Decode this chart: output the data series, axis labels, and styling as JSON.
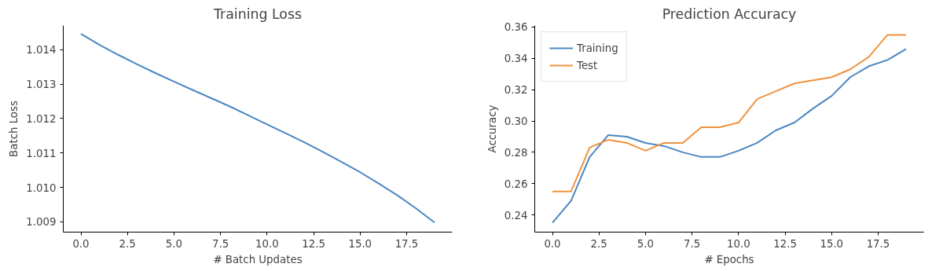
{
  "chart_data": [
    {
      "type": "line",
      "title": "Training Loss",
      "xlabel": "# Batch Updates",
      "ylabel": "Batch Loss",
      "x": [
        0,
        1,
        2,
        3,
        4,
        5,
        6,
        7,
        8,
        9,
        10,
        11,
        12,
        13,
        14,
        15,
        16,
        17,
        18,
        19
      ],
      "series": [
        {
          "color": "#4a86c2",
          "values": [
            1.01446,
            1.01414,
            1.01385,
            1.01358,
            1.01332,
            1.01307,
            1.01283,
            1.01259,
            1.01235,
            1.01209,
            1.01183,
            1.01157,
            1.01131,
            1.01103,
            1.01074,
            1.01044,
            1.01011,
            1.00977,
            1.00939,
            1.00898
          ]
        }
      ],
      "xlim": [
        -0.95,
        19.95
      ],
      "ylim": [
        1.0087,
        1.0147
      ],
      "xticks": [
        {
          "value": 0,
          "label": "0.0"
        },
        {
          "value": 2.5,
          "label": "2.5"
        },
        {
          "value": 5,
          "label": "5.0"
        },
        {
          "value": 7.5,
          "label": "7.5"
        },
        {
          "value": 10,
          "label": "10.0"
        },
        {
          "value": 12.5,
          "label": "12.5"
        },
        {
          "value": 15,
          "label": "15.0"
        },
        {
          "value": 17.5,
          "label": "17.5"
        }
      ],
      "yticks": [
        {
          "value": 1.009,
          "label": "1.009"
        },
        {
          "value": 1.01,
          "label": "1.010"
        },
        {
          "value": 1.011,
          "label": "1.011"
        },
        {
          "value": 1.012,
          "label": "1.012"
        },
        {
          "value": 1.013,
          "label": "1.013"
        },
        {
          "value": 1.014,
          "label": "1.014"
        }
      ],
      "grid": false,
      "legend": false
    },
    {
      "type": "line",
      "title": "Prediction Accuracy",
      "xlabel": "# Epochs",
      "ylabel": "Accuracy",
      "x": [
        0,
        1,
        2,
        3,
        4,
        5,
        6,
        7,
        8,
        9,
        10,
        11,
        12,
        13,
        14,
        15,
        16,
        17,
        18,
        19
      ],
      "series": [
        {
          "name": "Training",
          "color": "#4a86c2",
          "values": [
            0.235,
            0.249,
            0.277,
            0.291,
            0.29,
            0.286,
            0.284,
            0.28,
            0.277,
            0.277,
            0.281,
            0.286,
            0.294,
            0.299,
            0.308,
            0.316,
            0.328,
            0.335,
            0.339,
            0.346
          ]
        },
        {
          "name": "Test",
          "color": "#f0923e",
          "values": [
            0.255,
            0.255,
            0.283,
            0.288,
            0.286,
            0.281,
            0.286,
            0.286,
            0.296,
            0.296,
            0.299,
            0.314,
            0.319,
            0.324,
            0.326,
            0.328,
            0.333,
            0.341,
            0.355,
            0.355
          ]
        }
      ],
      "xlim": [
        -0.95,
        19.95
      ],
      "ylim": [
        0.229,
        0.361
      ],
      "xticks": [
        {
          "value": 0,
          "label": "0.0"
        },
        {
          "value": 2.5,
          "label": "2.5"
        },
        {
          "value": 5,
          "label": "5.0"
        },
        {
          "value": 7.5,
          "label": "7.5"
        },
        {
          "value": 10,
          "label": "10.0"
        },
        {
          "value": 12.5,
          "label": "12.5"
        },
        {
          "value": 15,
          "label": "15.0"
        },
        {
          "value": 17.5,
          "label": "17.5"
        }
      ],
      "yticks": [
        {
          "value": 0.24,
          "label": "0.24"
        },
        {
          "value": 0.26,
          "label": "0.26"
        },
        {
          "value": 0.28,
          "label": "0.28"
        },
        {
          "value": 0.3,
          "label": "0.30"
        },
        {
          "value": 0.32,
          "label": "0.32"
        },
        {
          "value": 0.34,
          "label": "0.34"
        },
        {
          "value": 0.36,
          "label": "0.36"
        }
      ],
      "grid": false,
      "legend": "top left"
    }
  ]
}
